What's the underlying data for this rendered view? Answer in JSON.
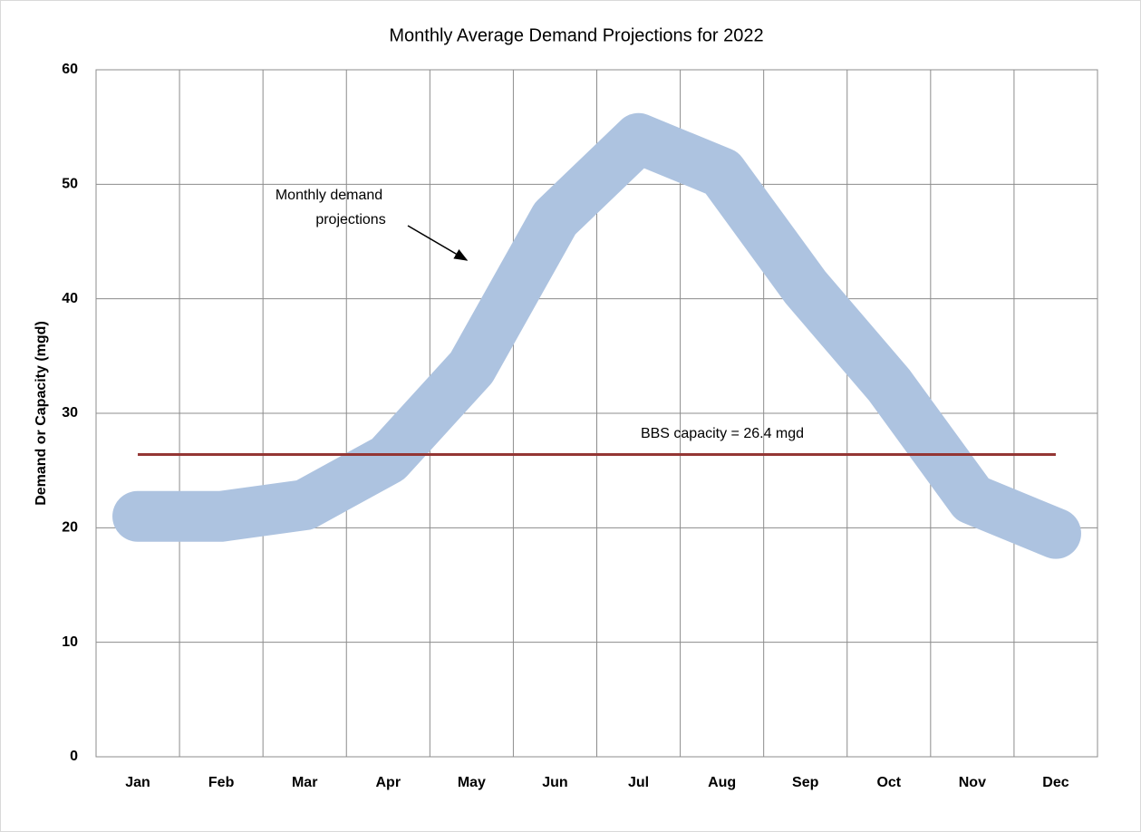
{
  "chart_data": {
    "type": "line",
    "title": "Monthly Average Demand Projections for 2022",
    "y_label": "Demand or Capacity (mgd)",
    "categories": [
      "Jan",
      "Feb",
      "Mar",
      "Apr",
      "May",
      "Jun",
      "Jul",
      "Aug",
      "Sep",
      "Oct",
      "Nov",
      "Dec"
    ],
    "series": [
      {
        "color": "#adc3e0",
        "values": [
          21,
          21,
          22,
          26,
          34,
          47,
          54,
          51,
          41,
          32.5,
          22.5,
          19.5
        ]
      }
    ],
    "reference_lines": [
      {
        "value": 26.4,
        "color": "#943634"
      }
    ],
    "demand_label": [
      "Monthly demand",
      "projections"
    ],
    "capacity_label": "BBS capacity = 26.4 mgd",
    "ylim": [
      0,
      60
    ],
    "yticks": [
      0,
      10,
      20,
      30,
      40,
      50,
      60
    ],
    "grid": true
  }
}
